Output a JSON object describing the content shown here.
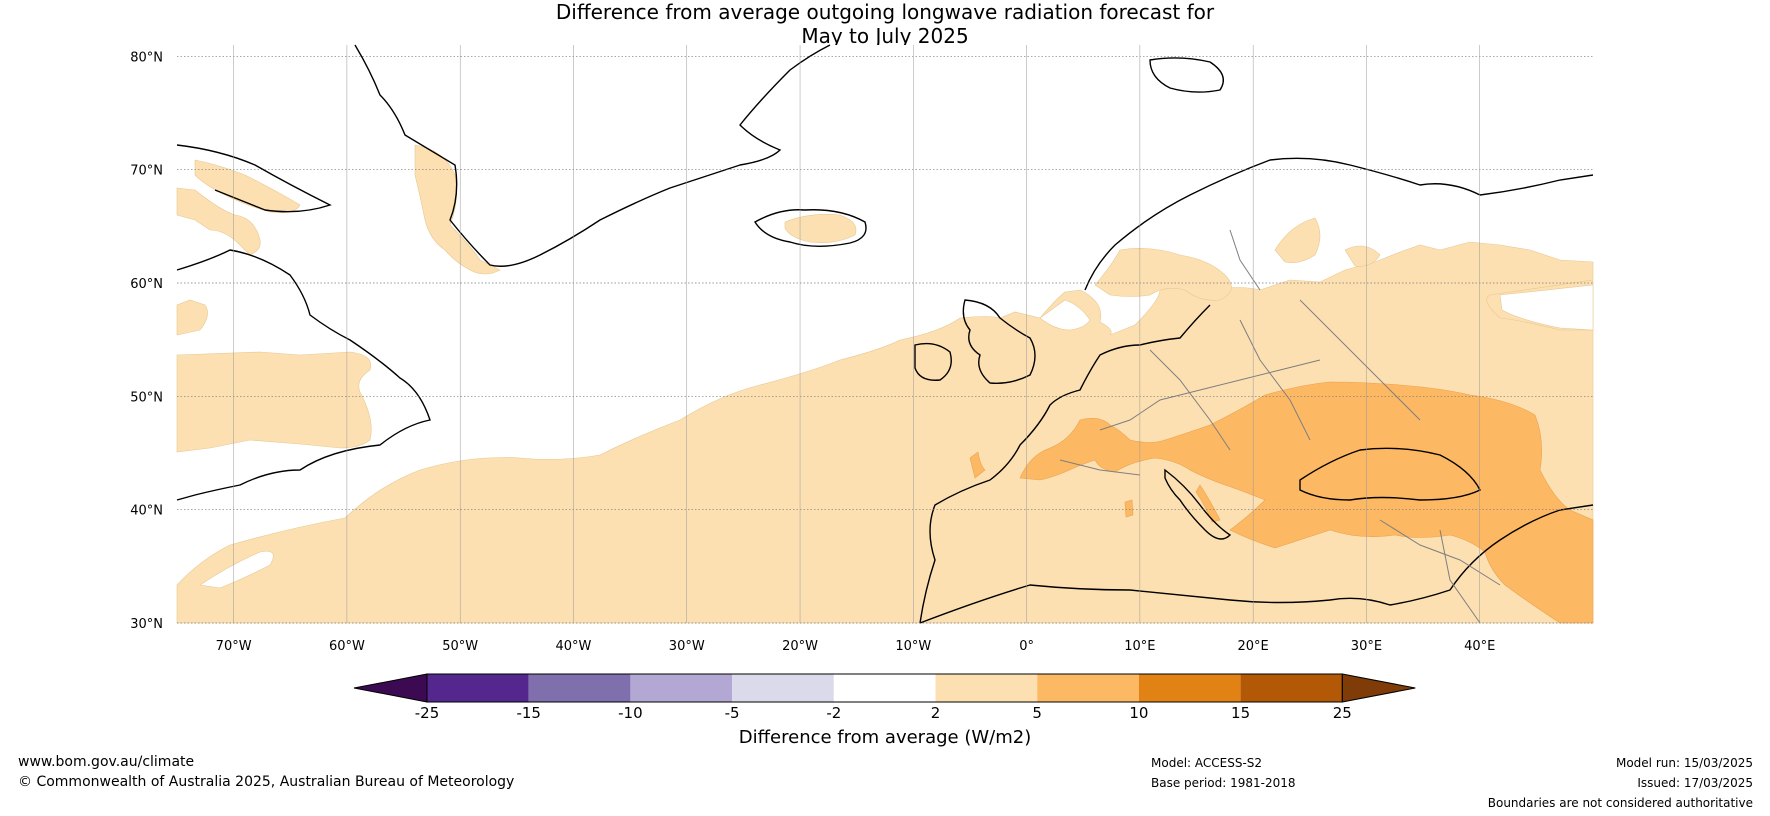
{
  "title_line1": "Difference from average outgoing longwave radiation forecast for",
  "title_line2": "May to July 2025",
  "lat_labels": [
    "80°N",
    "70°N",
    "60°N",
    "50°N",
    "40°N",
    "30°N"
  ],
  "lon_labels": [
    "70°W",
    "60°W",
    "50°W",
    "40°W",
    "30°W",
    "20°W",
    "10°W",
    "0°",
    "10°E",
    "20°E",
    "30°E",
    "40°E"
  ],
  "colorbar": {
    "title": "Difference from average (W/m2)",
    "tick_labels": [
      "-25",
      "-15",
      "-10",
      "-5",
      "-2",
      "2",
      "5",
      "10",
      "15",
      "25"
    ],
    "colors": [
      "#3b0a52",
      "#54278f",
      "#7f6fad",
      "#b2a8d3",
      "#dadaeb",
      "#ffffff",
      "#fde0b2",
      "#fdb863",
      "#e08214",
      "#b35806",
      "#7f3b08"
    ]
  },
  "footer": {
    "website": "www.bom.gov.au/climate",
    "copyright": "© Commonwealth of Australia 2025, Australian Bureau of Meteorology",
    "model": "Model: ACCESS-S2",
    "base_period": "Base period: 1981-2018",
    "model_run": "Model run: 15/03/2025",
    "issued": "Issued: 17/03/2025",
    "disclaimer": "Boundaries are not considered authoritative"
  }
}
